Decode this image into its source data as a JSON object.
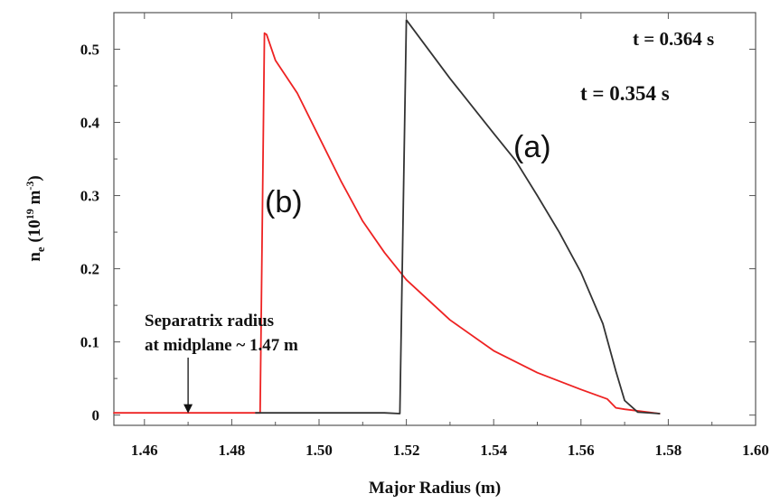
{
  "chart_data": {
    "type": "line",
    "xlabel": "Major Radius (m)",
    "ylabel_main": "n",
    "ylabel_sub": "e",
    "ylabel_unit_a": " (10",
    "ylabel_unit_b": "19",
    "ylabel_unit_c": " m",
    "ylabel_unit_d": "-3",
    "ylabel_unit_e": ")",
    "xlim": [
      1.453,
      1.6
    ],
    "ylim": [
      -0.014,
      0.55
    ],
    "x_ticks": [
      1.46,
      1.48,
      1.5,
      1.52,
      1.54,
      1.56,
      1.58,
      1.6
    ],
    "x_tick_labels": [
      "1.46",
      "1.48",
      "1.50",
      "1.52",
      "1.54",
      "1.56",
      "1.58",
      "1.60"
    ],
    "y_ticks": [
      0,
      0.1,
      0.2,
      0.3,
      0.4,
      0.5
    ],
    "y_tick_labels": [
      "0",
      "0.1",
      "0.2",
      "0.3",
      "0.4",
      "0.5"
    ],
    "grid": false,
    "series": [
      {
        "name": "(a)",
        "time_label": "t = 0.364 s",
        "color": "#333333",
        "x": [
          1.4855,
          1.505,
          1.515,
          1.5185,
          1.52,
          1.53,
          1.54,
          1.545,
          1.55,
          1.555,
          1.56,
          1.565,
          1.568,
          1.57,
          1.573,
          1.578
        ],
        "y": [
          0.003,
          0.003,
          0.003,
          0.002,
          0.54,
          0.46,
          0.385,
          0.348,
          0.3,
          0.25,
          0.195,
          0.125,
          0.06,
          0.02,
          0.004,
          0.002
        ]
      },
      {
        "name": "(b)",
        "time_label": "t = 0.354 s",
        "color": "#ee2222",
        "x": [
          1.453,
          1.485,
          1.4865,
          1.4875,
          1.488,
          1.49,
          1.495,
          1.5,
          1.505,
          1.51,
          1.515,
          1.52,
          1.53,
          1.54,
          1.55,
          1.56,
          1.566,
          1.568,
          1.57,
          1.578
        ],
        "y": [
          0.003,
          0.003,
          0.003,
          0.522,
          0.52,
          0.485,
          0.44,
          0.38,
          0.32,
          0.265,
          0.222,
          0.185,
          0.13,
          0.088,
          0.058,
          0.035,
          0.022,
          0.01,
          0.008,
          0.002
        ]
      }
    ],
    "annotations": {
      "separatrix_line1": "Separatrix radius",
      "separatrix_line2": "at midplane ~ 1.47 m",
      "separatrix_x": 1.47
    }
  }
}
